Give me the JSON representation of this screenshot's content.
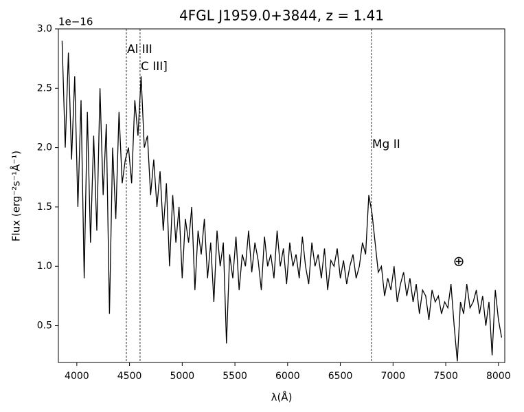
{
  "chart_data": {
    "type": "line",
    "title": "4FGL J1959.0+3844, z = 1.41",
    "x_label": "λ(Å)",
    "y_label": "Flux (erg⁻²s⁻¹Å⁻¹)",
    "y_offset_label": "1e−16",
    "xlim": [
      3825,
      8060
    ],
    "ylim": [
      0.19,
      3.0
    ],
    "xticks": [
      4000,
      4500,
      5000,
      5500,
      6000,
      6500,
      7000,
      7500,
      8000
    ],
    "yticks": [
      {
        "value": 0.5,
        "label": "0.5"
      },
      {
        "value": 1.0,
        "label": "1.0"
      },
      {
        "value": 1.5,
        "label": "1.5"
      },
      {
        "value": 2.0,
        "label": "2.0"
      },
      {
        "value": 2.5,
        "label": "2.5"
      },
      {
        "value": 3.0,
        "label": "3.0"
      }
    ],
    "color": "#000000",
    "x": [
      3860,
      3890,
      3920,
      3950,
      3980,
      4010,
      4040,
      4070,
      4100,
      4130,
      4160,
      4190,
      4220,
      4250,
      4280,
      4310,
      4340,
      4370,
      4400,
      4430,
      4460,
      4490,
      4520,
      4550,
      4580,
      4610,
      4640,
      4670,
      4700,
      4730,
      4760,
      4790,
      4820,
      4850,
      4880,
      4910,
      4940,
      4970,
      5000,
      5030,
      5060,
      5090,
      5120,
      5150,
      5180,
      5210,
      5240,
      5270,
      5300,
      5330,
      5360,
      5390,
      5420,
      5450,
      5480,
      5510,
      5540,
      5570,
      5600,
      5630,
      5660,
      5690,
      5720,
      5750,
      5780,
      5810,
      5840,
      5870,
      5900,
      5930,
      5960,
      5990,
      6020,
      6050,
      6080,
      6110,
      6140,
      6170,
      6200,
      6230,
      6260,
      6290,
      6320,
      6350,
      6380,
      6410,
      6440,
      6470,
      6500,
      6530,
      6560,
      6590,
      6620,
      6650,
      6680,
      6710,
      6740,
      6770,
      6800,
      6830,
      6860,
      6890,
      6920,
      6950,
      6980,
      7010,
      7040,
      7070,
      7100,
      7130,
      7160,
      7190,
      7220,
      7250,
      7280,
      7310,
      7340,
      7370,
      7400,
      7430,
      7460,
      7490,
      7520,
      7550,
      7580,
      7610,
      7640,
      7670,
      7700,
      7730,
      7760,
      7790,
      7820,
      7850,
      7880,
      7910,
      7940,
      7970,
      8000,
      8030
    ],
    "values": [
      2.9,
      2.0,
      2.8,
      1.9,
      2.6,
      1.5,
      2.4,
      0.9,
      2.3,
      1.2,
      2.1,
      1.3,
      2.5,
      1.6,
      2.2,
      0.6,
      2.0,
      1.4,
      2.3,
      1.7,
      1.9,
      2.0,
      1.7,
      2.4,
      2.1,
      2.6,
      2.0,
      2.1,
      1.6,
      1.9,
      1.5,
      1.8,
      1.3,
      1.7,
      1.0,
      1.6,
      1.2,
      1.5,
      0.9,
      1.4,
      1.2,
      1.5,
      0.8,
      1.3,
      1.1,
      1.4,
      0.9,
      1.2,
      0.7,
      1.3,
      1.0,
      1.2,
      0.35,
      1.1,
      0.9,
      1.25,
      0.8,
      1.1,
      1.0,
      1.3,
      0.95,
      1.2,
      1.05,
      0.8,
      1.25,
      1.0,
      1.1,
      0.9,
      1.3,
      1.0,
      1.15,
      0.85,
      1.2,
      1.0,
      1.1,
      0.9,
      1.25,
      1.0,
      0.85,
      1.2,
      1.0,
      1.1,
      0.9,
      1.15,
      0.8,
      1.05,
      1.0,
      1.15,
      0.9,
      1.05,
      0.85,
      1.0,
      1.1,
      0.9,
      1.0,
      1.2,
      1.1,
      1.6,
      1.45,
      1.2,
      0.95,
      1.0,
      0.75,
      0.9,
      0.8,
      1.0,
      0.7,
      0.85,
      0.95,
      0.75,
      0.9,
      0.7,
      0.85,
      0.6,
      0.8,
      0.75,
      0.55,
      0.8,
      0.7,
      0.75,
      0.6,
      0.7,
      0.65,
      0.85,
      0.5,
      0.2,
      0.7,
      0.6,
      0.85,
      0.65,
      0.7,
      0.8,
      0.6,
      0.75,
      0.5,
      0.7,
      0.25,
      0.8,
      0.55,
      0.4
    ],
    "lines": [
      {
        "x": 4470,
        "label": "Al III"
      },
      {
        "x": 4600,
        "label": "C III]"
      },
      {
        "x": 6795,
        "label": "Mg II"
      }
    ],
    "annotation": "⊕"
  }
}
